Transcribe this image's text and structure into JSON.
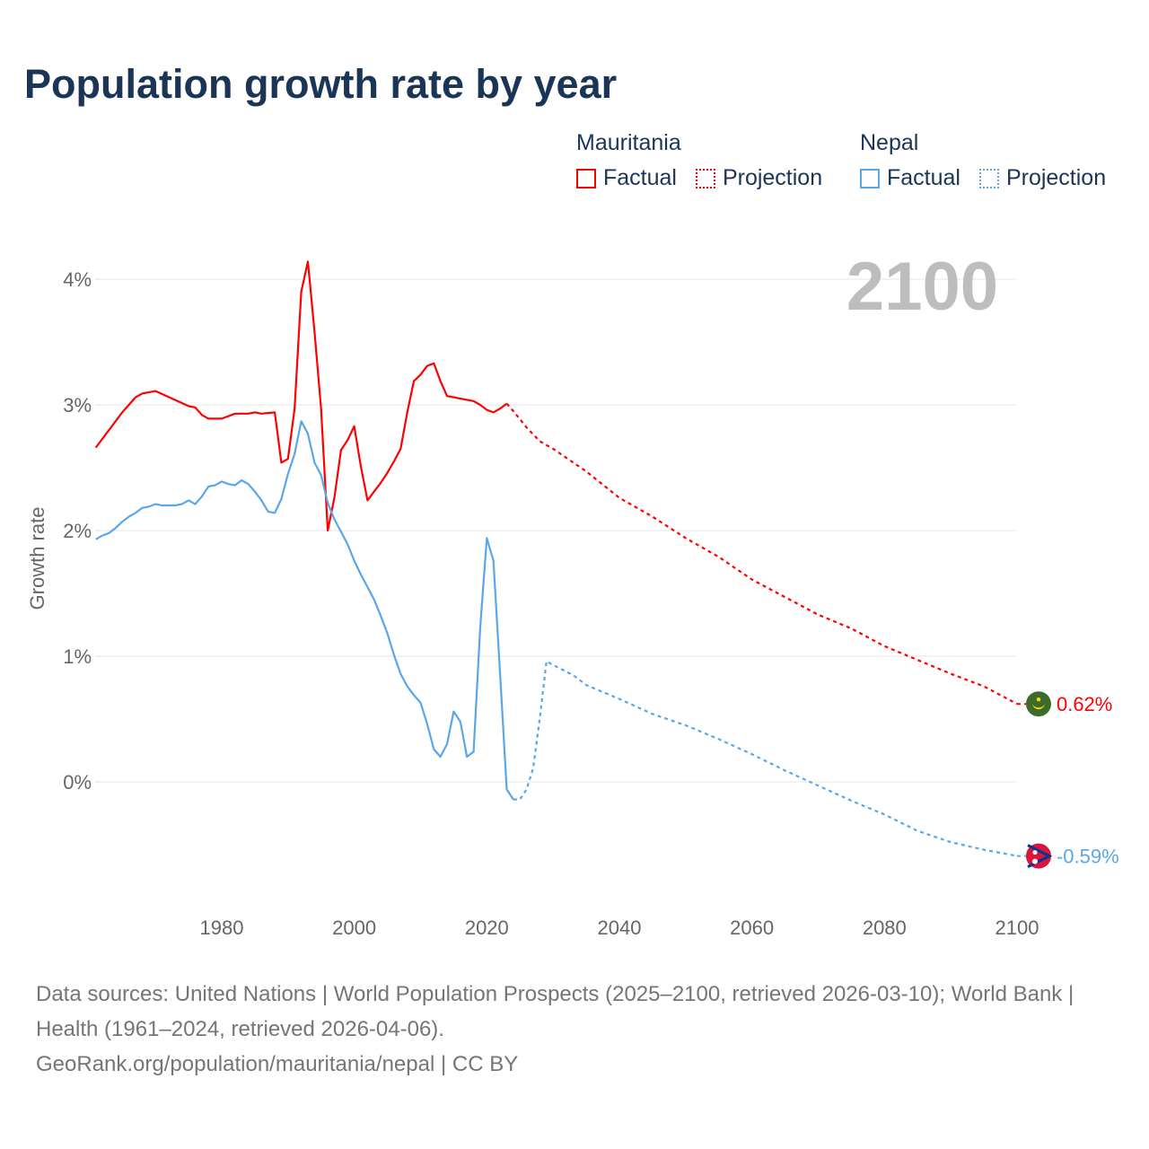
{
  "title": "Population growth rate by year",
  "year_label": "2100",
  "legend": [
    {
      "name": "Mauritania",
      "factual": "Factual",
      "projection": "Projection",
      "color": "#ff0000"
    },
    {
      "name": "Nepal",
      "factual": "Factual",
      "projection": "Projection",
      "color": "#5aa6ea"
    }
  ],
  "footer": {
    "sources": "Data sources: United Nations | World Population Prospects (2025–2100, retrieved 2026-03-10); World Bank | Health (1961–2024, retrieved 2026-04-06).",
    "credit": "GeoRank.org/population/mauritania/nepal | CC BY"
  },
  "chart_data": {
    "type": "line",
    "title": "Population growth rate by year",
    "xlabel": "",
    "ylabel": "Growth rate",
    "xlim": [
      1961,
      2100
    ],
    "ylim": [
      -0.9,
      4.3
    ],
    "xticks": [
      1980,
      2000,
      2020,
      2040,
      2060,
      2080,
      2100
    ],
    "xtick_labels": [
      "1980",
      "2000",
      "2020",
      "2040",
      "2060",
      "2080",
      "2100"
    ],
    "yticks": [
      0,
      1,
      2,
      3,
      4
    ],
    "ytick_labels": [
      "0%",
      "1%",
      "2%",
      "3%",
      "4%"
    ],
    "grid": true,
    "legend_position": "top-right",
    "series": [
      {
        "name": "Mauritania",
        "color": "#ff0000",
        "end_label": "0.62%",
        "factual": [
          [
            1961,
            2.66
          ],
          [
            1965,
            2.94
          ],
          [
            1967,
            3.06
          ],
          [
            1968,
            3.09
          ],
          [
            1970,
            3.11
          ],
          [
            1975,
            2.99
          ],
          [
            1976,
            2.98
          ],
          [
            1977,
            2.92
          ],
          [
            1978,
            2.89
          ],
          [
            1980,
            2.89
          ],
          [
            1981,
            2.91
          ],
          [
            1982,
            2.93
          ],
          [
            1984,
            2.93
          ],
          [
            1985,
            2.94
          ],
          [
            1986,
            2.93
          ],
          [
            1988,
            2.94
          ],
          [
            1989,
            2.54
          ],
          [
            1990,
            2.57
          ],
          [
            1991,
            2.97
          ],
          [
            1992,
            3.9
          ],
          [
            1993,
            4.14
          ],
          [
            1994,
            3.58
          ],
          [
            1995,
            2.97
          ],
          [
            1996,
            2.0
          ],
          [
            1997,
            2.26
          ],
          [
            1998,
            2.64
          ],
          [
            1999,
            2.72
          ],
          [
            2000,
            2.83
          ],
          [
            2001,
            2.51
          ],
          [
            2002,
            2.24
          ],
          [
            2003,
            2.31
          ],
          [
            2004,
            2.38
          ],
          [
            2005,
            2.46
          ],
          [
            2006,
            2.55
          ],
          [
            2007,
            2.65
          ],
          [
            2008,
            2.94
          ],
          [
            2009,
            3.19
          ],
          [
            2010,
            3.24
          ],
          [
            2011,
            3.31
          ],
          [
            2012,
            3.33
          ],
          [
            2013,
            3.19
          ],
          [
            2014,
            3.07
          ],
          [
            2017,
            3.04
          ],
          [
            2018,
            3.03
          ],
          [
            2019,
            3.0
          ],
          [
            2020,
            2.96
          ],
          [
            2021,
            2.94
          ],
          [
            2022,
            2.97
          ],
          [
            2023,
            3.01
          ]
        ],
        "projection": [
          [
            2023,
            3.01
          ],
          [
            2024,
            2.95
          ],
          [
            2026,
            2.82
          ],
          [
            2028,
            2.71
          ],
          [
            2030,
            2.65
          ],
          [
            2035,
            2.47
          ],
          [
            2040,
            2.26
          ],
          [
            2045,
            2.11
          ],
          [
            2050,
            1.94
          ],
          [
            2055,
            1.79
          ],
          [
            2060,
            1.61
          ],
          [
            2065,
            1.47
          ],
          [
            2070,
            1.33
          ],
          [
            2075,
            1.22
          ],
          [
            2080,
            1.08
          ],
          [
            2085,
            0.97
          ],
          [
            2090,
            0.86
          ],
          [
            2095,
            0.76
          ],
          [
            2100,
            0.62
          ]
        ]
      },
      {
        "name": "Nepal",
        "color": "#5aa6ea",
        "end_label": "-0.59%",
        "factual": [
          [
            1961,
            1.93
          ],
          [
            1962,
            1.96
          ],
          [
            1963,
            1.98
          ],
          [
            1964,
            2.02
          ],
          [
            1965,
            2.07
          ],
          [
            1966,
            2.11
          ],
          [
            1967,
            2.14
          ],
          [
            1968,
            2.18
          ],
          [
            1969,
            2.19
          ],
          [
            1970,
            2.21
          ],
          [
            1971,
            2.2
          ],
          [
            1973,
            2.2
          ],
          [
            1974,
            2.21
          ],
          [
            1975,
            2.24
          ],
          [
            1976,
            2.21
          ],
          [
            1977,
            2.27
          ],
          [
            1978,
            2.35
          ],
          [
            1979,
            2.36
          ],
          [
            1980,
            2.39
          ],
          [
            1981,
            2.37
          ],
          [
            1982,
            2.36
          ],
          [
            1983,
            2.4
          ],
          [
            1984,
            2.37
          ],
          [
            1985,
            2.31
          ],
          [
            1986,
            2.24
          ],
          [
            1987,
            2.15
          ],
          [
            1988,
            2.14
          ],
          [
            1989,
            2.25
          ],
          [
            1990,
            2.45
          ],
          [
            1991,
            2.61
          ],
          [
            1992,
            2.87
          ],
          [
            1993,
            2.77
          ],
          [
            1994,
            2.54
          ],
          [
            1995,
            2.44
          ],
          [
            1996,
            2.22
          ],
          [
            1997,
            2.09
          ],
          [
            1998,
            1.99
          ],
          [
            1999,
            1.89
          ],
          [
            2000,
            1.76
          ],
          [
            2001,
            1.65
          ],
          [
            2002,
            1.55
          ],
          [
            2003,
            1.45
          ],
          [
            2004,
            1.32
          ],
          [
            2005,
            1.18
          ],
          [
            2006,
            1.01
          ],
          [
            2007,
            0.86
          ],
          [
            2008,
            0.76
          ],
          [
            2009,
            0.69
          ],
          [
            2010,
            0.63
          ],
          [
            2011,
            0.46
          ],
          [
            2012,
            0.26
          ],
          [
            2013,
            0.2
          ],
          [
            2014,
            0.3
          ],
          [
            2015,
            0.56
          ],
          [
            2016,
            0.48
          ],
          [
            2017,
            0.2
          ],
          [
            2018,
            0.24
          ],
          [
            2019,
            1.22
          ],
          [
            2020,
            1.94
          ],
          [
            2021,
            1.76
          ],
          [
            2022,
            0.86
          ],
          [
            2023,
            -0.06
          ],
          [
            2024,
            -0.14
          ]
        ],
        "projection": [
          [
            2024,
            -0.14
          ],
          [
            2025,
            -0.14
          ],
          [
            2026,
            -0.06
          ],
          [
            2027,
            0.11
          ],
          [
            2028,
            0.51
          ],
          [
            2029,
            0.96
          ],
          [
            2030,
            0.93
          ],
          [
            2033,
            0.85
          ],
          [
            2035,
            0.77
          ],
          [
            2040,
            0.66
          ],
          [
            2045,
            0.54
          ],
          [
            2050,
            0.45
          ],
          [
            2055,
            0.34
          ],
          [
            2060,
            0.22
          ],
          [
            2065,
            0.09
          ],
          [
            2070,
            -0.03
          ],
          [
            2075,
            -0.15
          ],
          [
            2080,
            -0.26
          ],
          [
            2085,
            -0.39
          ],
          [
            2090,
            -0.48
          ],
          [
            2095,
            -0.54
          ],
          [
            2100,
            -0.59
          ]
        ]
      }
    ]
  }
}
